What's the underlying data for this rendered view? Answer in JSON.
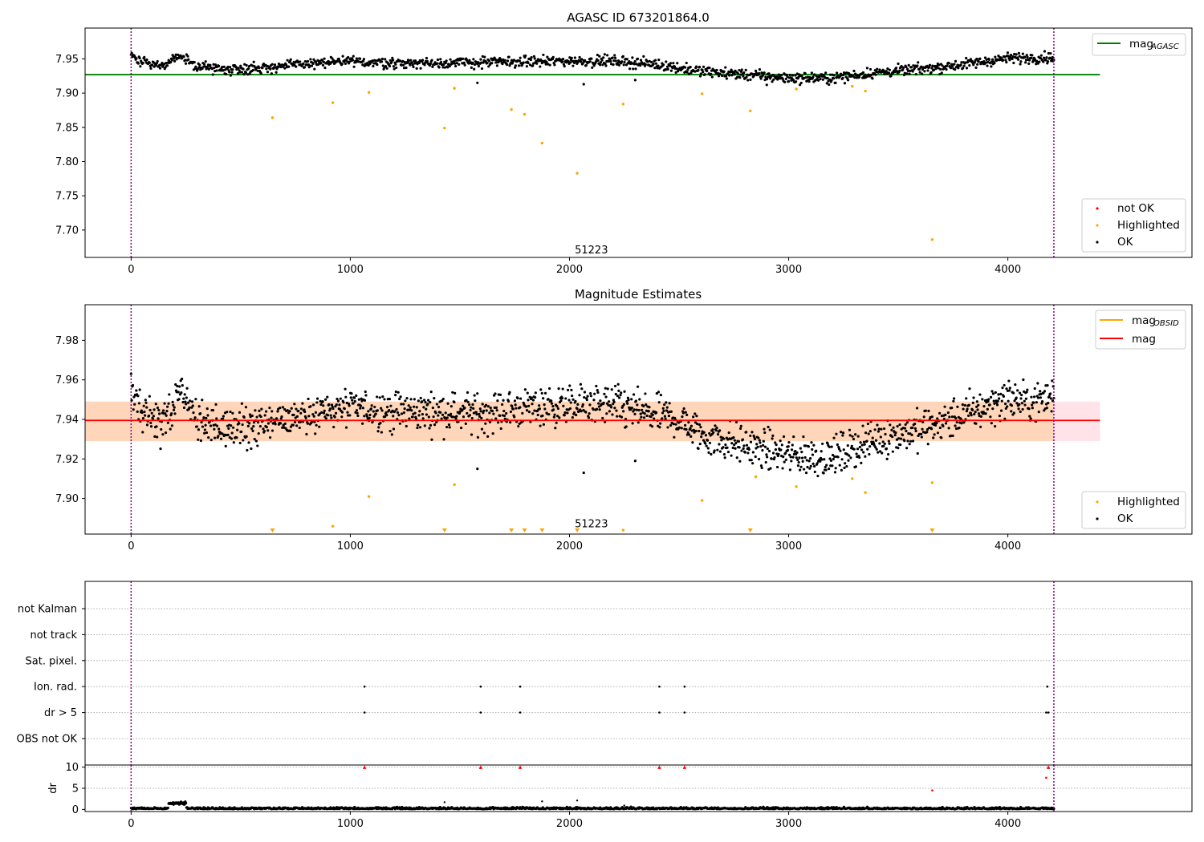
{
  "chart_data": [
    {
      "panel": "top",
      "type": "scatter",
      "title": "AGASC ID 673201864.0",
      "xlim": [
        -210,
        4840
      ],
      "ylim": [
        7.66,
        7.995
      ],
      "x_ticks": [
        0,
        1000,
        2000,
        3000,
        4000
      ],
      "y_ticks": [
        7.7,
        7.75,
        7.8,
        7.85,
        7.9,
        7.95
      ],
      "y_tick_labels": [
        "7.70",
        "7.75",
        "7.80",
        "7.85",
        "7.90",
        "7.95"
      ],
      "vlines": [
        0,
        4210
      ],
      "observation_label": {
        "text": "51223",
        "x": 2100,
        "y": 7.668
      },
      "hlines": [
        {
          "name": "mag_AGASC",
          "y": 7.927,
          "x_range": [
            -210,
            4420
          ],
          "color": "#008000"
        }
      ],
      "legend_top": [
        {
          "label": "mag",
          "sub": "AGASC",
          "type": "line",
          "color": "#008000"
        }
      ],
      "legend_bottom": [
        {
          "label": "not OK",
          "color": "#ff0000"
        },
        {
          "label": "Highlighted",
          "color": "#ffa500"
        },
        {
          "label": "OK",
          "color": "#000000"
        }
      ],
      "highlighted": {
        "x": [
          645,
          920,
          1085,
          1430,
          1475,
          1735,
          1795,
          1875,
          2035,
          2245,
          2605,
          2825,
          3035,
          3290,
          3350,
          3655
        ],
        "y": [
          7.864,
          7.886,
          7.901,
          7.849,
          7.907,
          7.876,
          7.869,
          7.827,
          7.783,
          7.884,
          7.899,
          7.874,
          7.906,
          7.91,
          7.903,
          7.686
        ]
      },
      "ok_trend": {
        "x": [
          0,
          80,
          150,
          210,
          300,
          420,
          600,
          800,
          1000,
          1200,
          1400,
          1600,
          1800,
          2000,
          2200,
          2400,
          2600,
          2800,
          3000,
          3200,
          3400,
          3600,
          3800,
          4000,
          4210
        ],
        "y": [
          7.955,
          7.943,
          7.94,
          7.953,
          7.94,
          7.935,
          7.937,
          7.943,
          7.946,
          7.944,
          7.944,
          7.945,
          7.946,
          7.947,
          7.947,
          7.942,
          7.932,
          7.927,
          7.922,
          7.922,
          7.93,
          7.935,
          7.942,
          7.951,
          7.952
        ]
      },
      "ok_outliers": {
        "x": [
          1580,
          2065,
          2300,
          2900
        ],
        "y": [
          7.915,
          7.913,
          7.919,
          7.912
        ]
      }
    },
    {
      "panel": "middle",
      "type": "scatter",
      "title": "Magnitude Estimates",
      "xlim": [
        -210,
        4840
      ],
      "ylim": [
        7.882,
        7.998
      ],
      "x_ticks": [
        0,
        1000,
        2000,
        3000,
        4000
      ],
      "y_ticks": [
        7.9,
        7.92,
        7.94,
        7.96,
        7.98
      ],
      "y_tick_labels": [
        "7.90",
        "7.92",
        "7.94",
        "7.96",
        "7.98"
      ],
      "vlines": [
        0,
        4210
      ],
      "observation_label": {
        "text": "51223",
        "x": 2100,
        "y": 7.885
      },
      "band": {
        "y_range": [
          7.929,
          7.949
        ],
        "x_range": [
          -210,
          4420
        ]
      },
      "hlines": [
        {
          "name": "mag_OBSID",
          "y": 7.9395,
          "x_range": [
            -210,
            4210
          ],
          "color": "#ffa500"
        },
        {
          "name": "mag",
          "y": 7.9395,
          "x_range": [
            -210,
            4420
          ],
          "color": "#ff0000"
        }
      ],
      "legend_top": [
        {
          "label": "mag",
          "sub": "OBSID",
          "type": "line",
          "color": "#ffa500"
        },
        {
          "label": "mag",
          "sub": "",
          "type": "line",
          "color": "#ff0000"
        }
      ],
      "legend_bottom": [
        {
          "label": "Highlighted",
          "color": "#ffa500"
        },
        {
          "label": "OK",
          "color": "#000000"
        }
      ],
      "highlighted": {
        "x": [
          920,
          1085,
          1475,
          2245,
          2605,
          2850,
          3035,
          3290,
          3350,
          3655
        ],
        "y": [
          7.886,
          7.901,
          7.907,
          7.884,
          7.899,
          7.911,
          7.906,
          7.91,
          7.903,
          7.908
        ]
      },
      "below_axis_markers": {
        "x": [
          645,
          1430,
          1735,
          1795,
          1875,
          2035,
          2825,
          3655
        ]
      },
      "ok_trend": {
        "x": [
          0,
          40,
          100,
          150,
          200,
          230,
          300,
          420,
          600,
          800,
          1000,
          1200,
          1400,
          1600,
          1800,
          2000,
          2200,
          2400,
          2500,
          2600,
          2800,
          3000,
          3200,
          3400,
          3600,
          3800,
          4000,
          4100,
          4210
        ],
        "y": [
          7.955,
          7.945,
          7.941,
          7.938,
          7.948,
          7.953,
          7.938,
          7.935,
          7.937,
          7.943,
          7.946,
          7.944,
          7.944,
          7.943,
          7.946,
          7.947,
          7.947,
          7.942,
          7.94,
          7.932,
          7.927,
          7.922,
          7.921,
          7.93,
          7.935,
          7.942,
          7.951,
          7.948,
          7.952
        ]
      },
      "ok_outliers": {
        "x": [
          1580,
          2065,
          2300
        ],
        "y": [
          7.915,
          7.913,
          7.919
        ]
      }
    },
    {
      "panel": "flags",
      "type": "scatter",
      "xlim": [
        -210,
        4840
      ],
      "vlines": [
        0,
        4210
      ],
      "categories": [
        "not Kalman",
        "not track",
        "Sat. pixel.",
        "Ion. rad.",
        "dr > 5",
        "OBS not OK"
      ],
      "events": {
        "Ion. rad.": [
          1065,
          1595,
          1775,
          2410,
          2525,
          4180
        ],
        "dr > 5": [
          1065,
          1595,
          1775,
          2410,
          2525,
          4175,
          4185
        ]
      }
    },
    {
      "panel": "dr",
      "type": "scatter",
      "ylabel": "dr",
      "xlim": [
        -210,
        4840
      ],
      "ylim": [
        -0.5,
        10.5
      ],
      "y_ticks": [
        0,
        5,
        10
      ],
      "y_tick_labels": [
        "0",
        "5",
        "10"
      ],
      "x_ticks": [
        0,
        1000,
        2000,
        3000,
        4000
      ],
      "vlines": [
        0,
        4210
      ],
      "hline_y": 5,
      "not_ok": {
        "x": [
          1065,
          1595,
          1775,
          2410,
          2525,
          3655,
          4175,
          4185
        ],
        "y": [
          10,
          10,
          10,
          10,
          10,
          4.5,
          7.5,
          10
        ]
      },
      "ok_spikes": {
        "x": [
          1430,
          1875,
          2035,
          2250
        ],
        "y": [
          1.7,
          1.9,
          2.1,
          0.9
        ]
      }
    }
  ]
}
